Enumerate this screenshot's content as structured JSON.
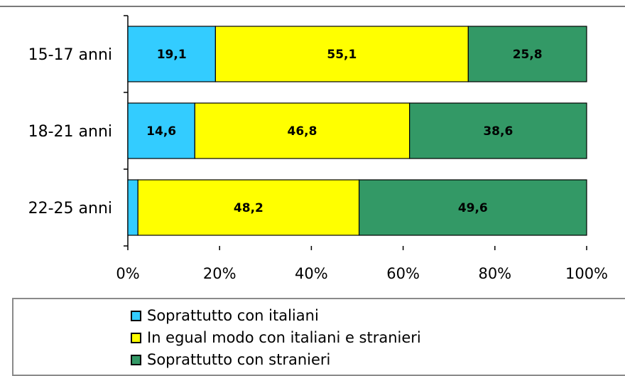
{
  "chart_data": {
    "type": "bar",
    "orientation": "horizontal",
    "stacked": "percent",
    "categories": [
      "15-17 anni",
      "18-21 anni",
      "22-25 anni"
    ],
    "series": [
      {
        "name": "Soprattutto con italiani",
        "color": "#33ccff",
        "values": [
          19.1,
          14.6,
          2.2
        ],
        "labels": [
          "19,1",
          "14,6",
          ""
        ]
      },
      {
        "name": "In egual modo con italiani e stranieri",
        "color": "#ffff00",
        "values": [
          55.1,
          46.8,
          48.2
        ],
        "labels": [
          "55,1",
          "46,8",
          "48,2"
        ]
      },
      {
        "name": "Soprattutto con stranieri",
        "color": "#339966",
        "values": [
          25.8,
          38.6,
          49.6
        ],
        "labels": [
          "25,8",
          "38,6",
          "49,6"
        ]
      }
    ],
    "xticks": [
      "0%",
      "20%",
      "40%",
      "60%",
      "80%",
      "100%"
    ],
    "xlim": [
      0,
      100
    ],
    "grid": false,
    "legend_position": "bottom"
  }
}
